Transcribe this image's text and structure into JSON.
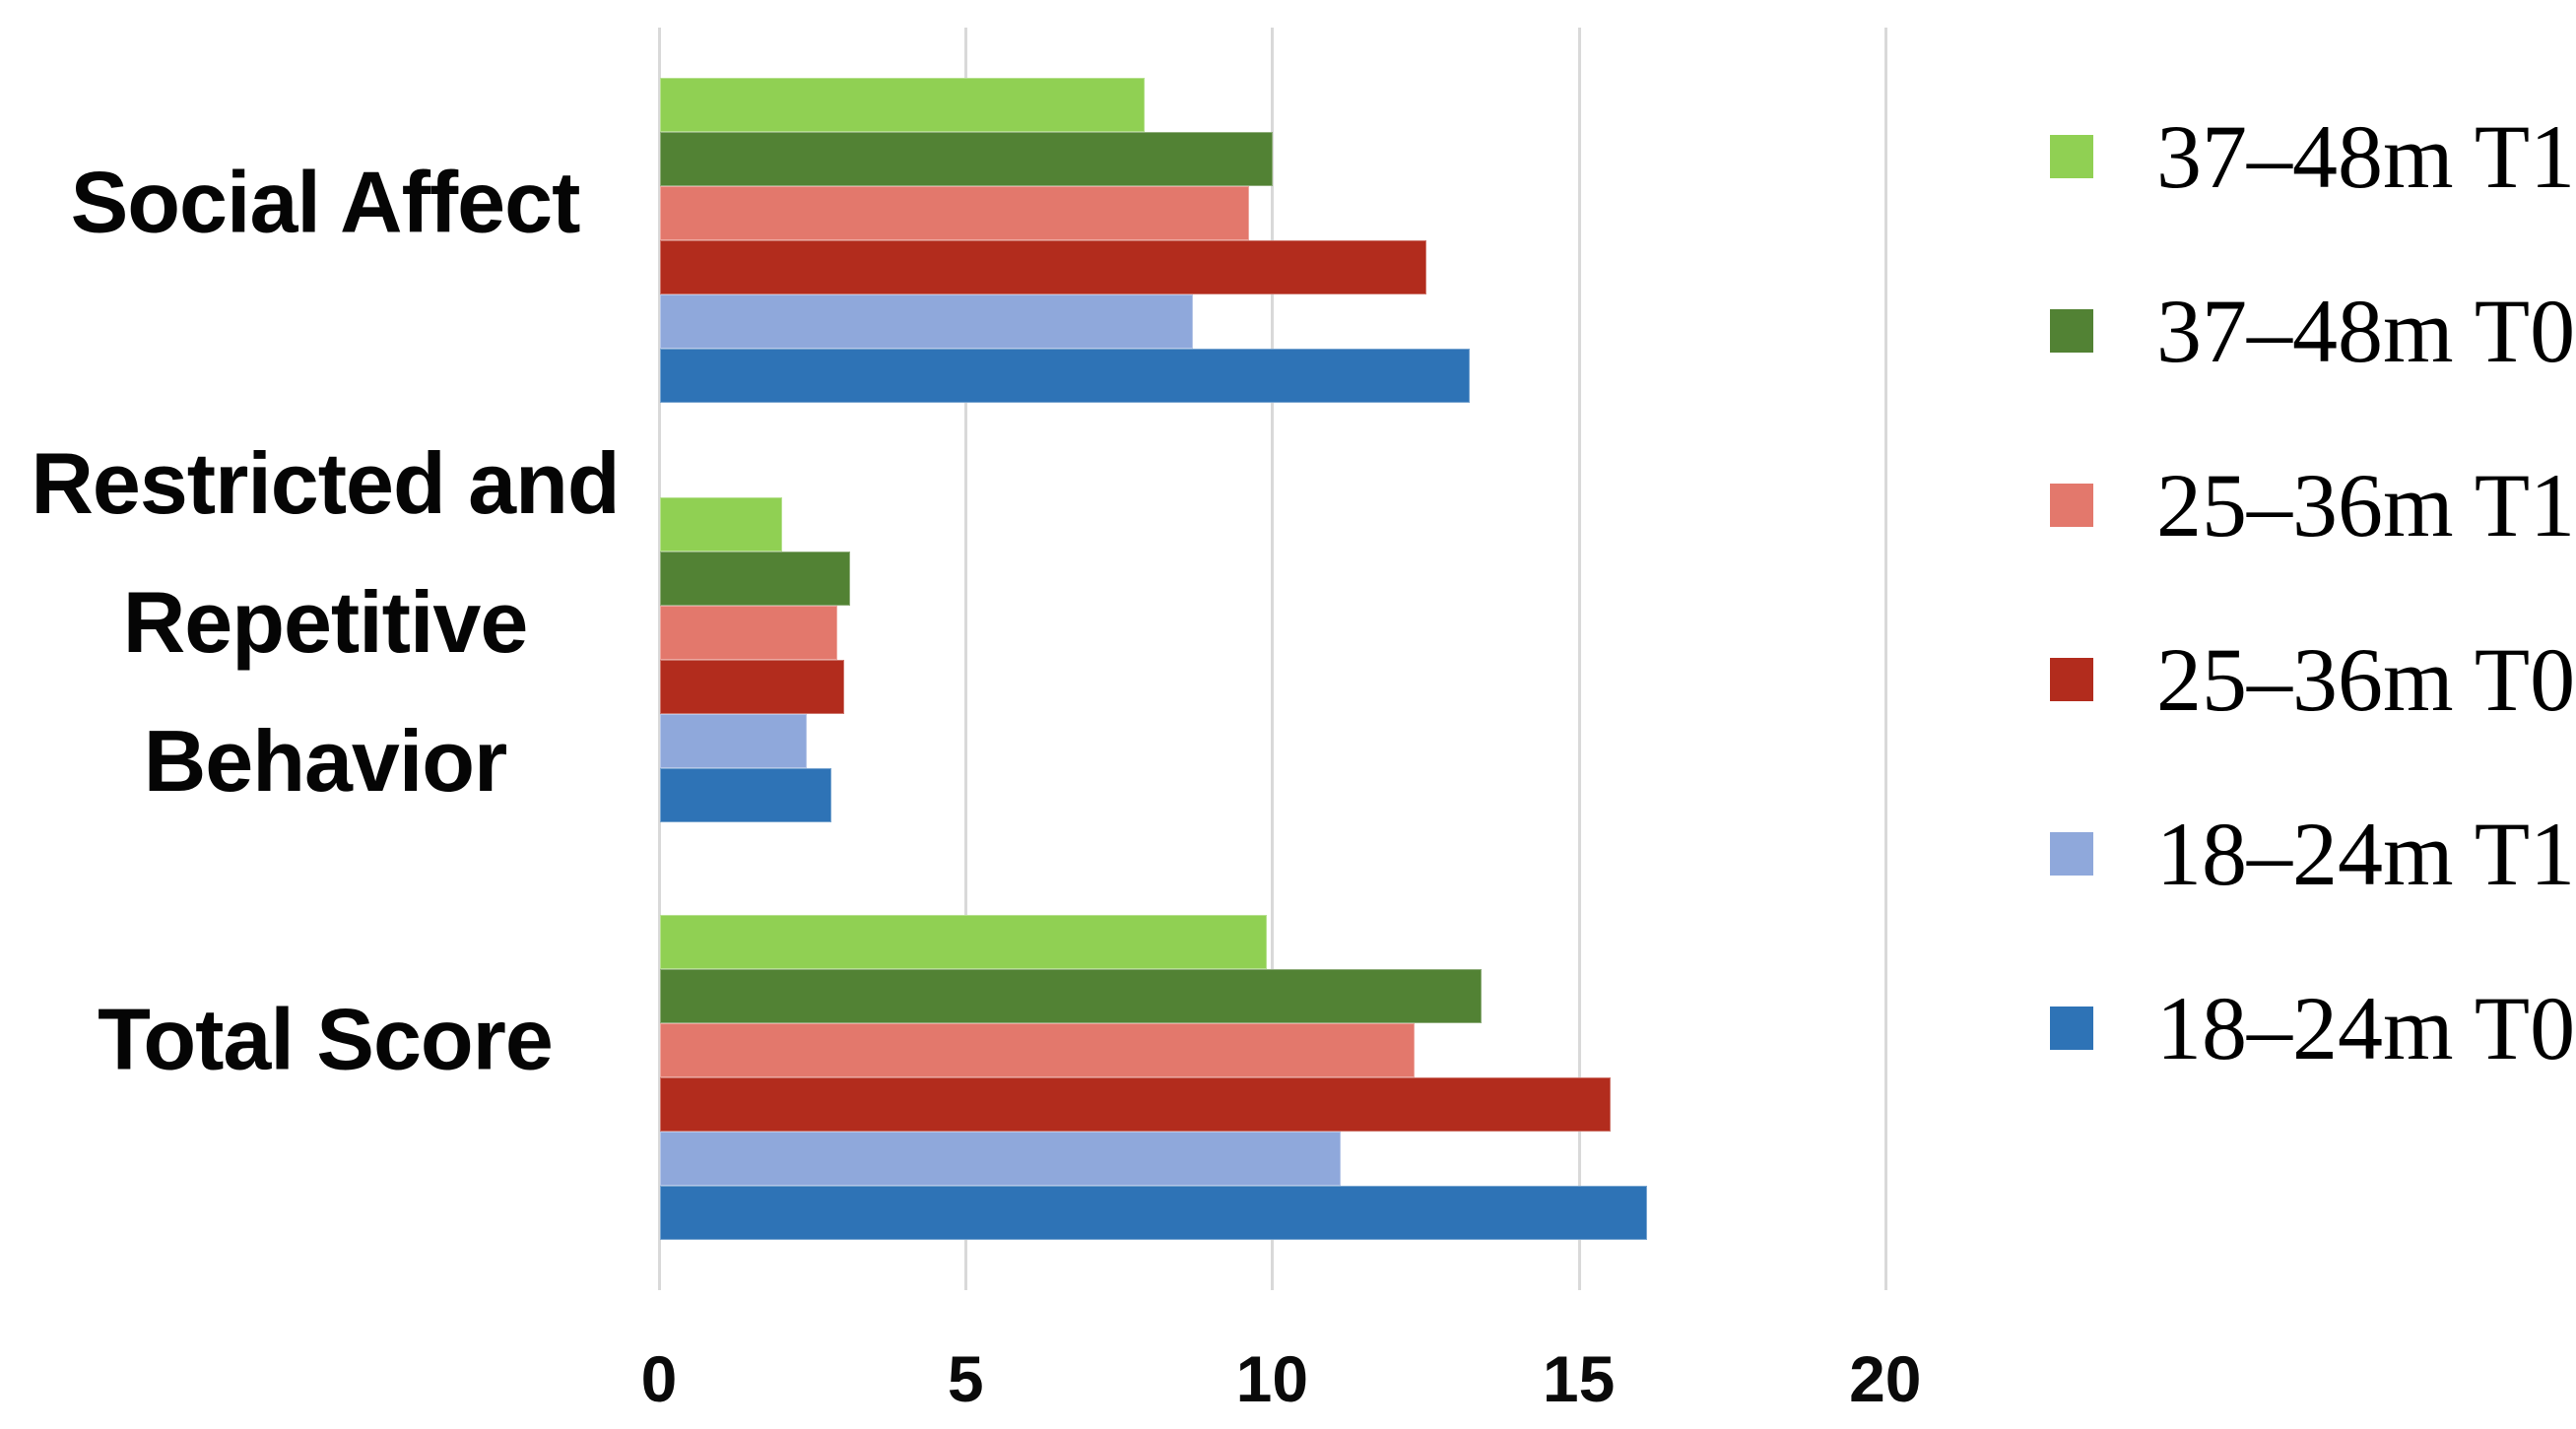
{
  "chart_data": {
    "type": "bar",
    "orientation": "horizontal",
    "title": "",
    "xlabel": "",
    "ylabel": "",
    "xlim": [
      0,
      20
    ],
    "xticks": [
      0,
      5,
      10,
      15,
      20
    ],
    "xtick_labels": [
      "0",
      "5",
      "10",
      "15",
      "20"
    ],
    "grid": true,
    "gridline_color": "#d9d9d9",
    "legend_position": "right",
    "categories": [
      "Social Affect",
      "Restricted and Repetitive Behavior",
      "Total Score"
    ],
    "category_label_lines": [
      [
        "Social Affect"
      ],
      [
        "Restricted and",
        "Repetitive",
        "Behavior"
      ],
      [
        "Total Score"
      ]
    ],
    "series": [
      {
        "name": "37–48m T1",
        "color": "#90d053",
        "values": [
          7.9,
          2.0,
          9.9
        ]
      },
      {
        "name": "37–48m T0",
        "color": "#528234",
        "values": [
          10.0,
          3.1,
          13.4
        ]
      },
      {
        "name": "25–36m T1",
        "color": "#e3786c",
        "values": [
          9.6,
          2.9,
          12.3
        ]
      },
      {
        "name": "25–36m T0",
        "color": "#b22c1d",
        "values": [
          12.5,
          3.0,
          15.5
        ]
      },
      {
        "name": "18–24m T1",
        "color": "#8fa8db",
        "values": [
          8.7,
          2.4,
          11.1
        ]
      },
      {
        "name": "18–24m T0",
        "color": "#2e73b6",
        "values": [
          13.2,
          2.8,
          16.1
        ]
      }
    ]
  }
}
